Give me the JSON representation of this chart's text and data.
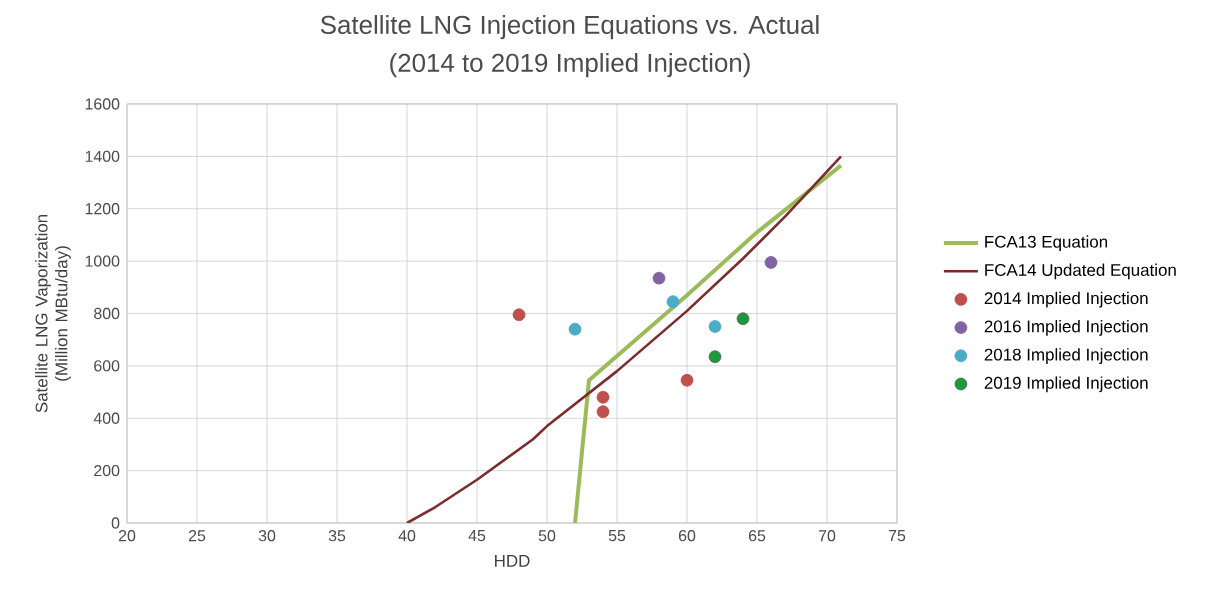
{
  "chart_data": {
    "type": "scatter",
    "title": "Satellite LNG Injection Equations vs. Actual",
    "subtitle": "(2014 to 2019 Implied Injection)",
    "xlabel": "HDD",
    "ylabel": "Satellite LNG Vaporization (Million MBtu/day)",
    "xlim": [
      20,
      75
    ],
    "xticks": [
      20,
      25,
      30,
      35,
      40,
      45,
      50,
      55,
      60,
      65,
      70,
      75
    ],
    "ylim": [
      0,
      1600
    ],
    "yticks": [
      0,
      200,
      400,
      600,
      800,
      1000,
      1200,
      1400,
      1600
    ],
    "grid": true,
    "legend": "right",
    "series": [
      {
        "name": "FCA13 Equation",
        "type": "line",
        "marker": "none",
        "color": "#9bbb59",
        "x": [
          52,
          53,
          60,
          65,
          71
        ],
        "values": [
          0,
          545,
          870,
          1110,
          1365
        ]
      },
      {
        "name": "FCA14 Updated Equation",
        "type": "line",
        "marker": "none",
        "color": "#7b2c2c",
        "x": [
          40,
          42,
          45,
          49,
          50,
          55,
          60,
          64,
          67,
          71
        ],
        "values": [
          0,
          60,
          165,
          320,
          370,
          580,
          810,
          1010,
          1170,
          1400
        ]
      },
      {
        "name": "2014 Implied Injection",
        "marker": "circle",
        "color": "#c0504d",
        "x": [
          48,
          54,
          54,
          60
        ],
        "values": [
          795,
          480,
          425,
          545
        ]
      },
      {
        "name": "2016 Implied Injection",
        "marker": "circle",
        "color": "#8064a2",
        "x": [
          58,
          66
        ],
        "values": [
          935,
          995
        ]
      },
      {
        "name": "2018 Implied Injection",
        "marker": "circle",
        "color": "#4bacc6",
        "x": [
          52,
          59,
          62
        ],
        "values": [
          740,
          845,
          750
        ]
      },
      {
        "name": "2019 Implied Injection",
        "marker": "circle",
        "color": "#1a9a3a",
        "x": [
          62,
          64
        ],
        "values": [
          635,
          780
        ]
      }
    ]
  }
}
